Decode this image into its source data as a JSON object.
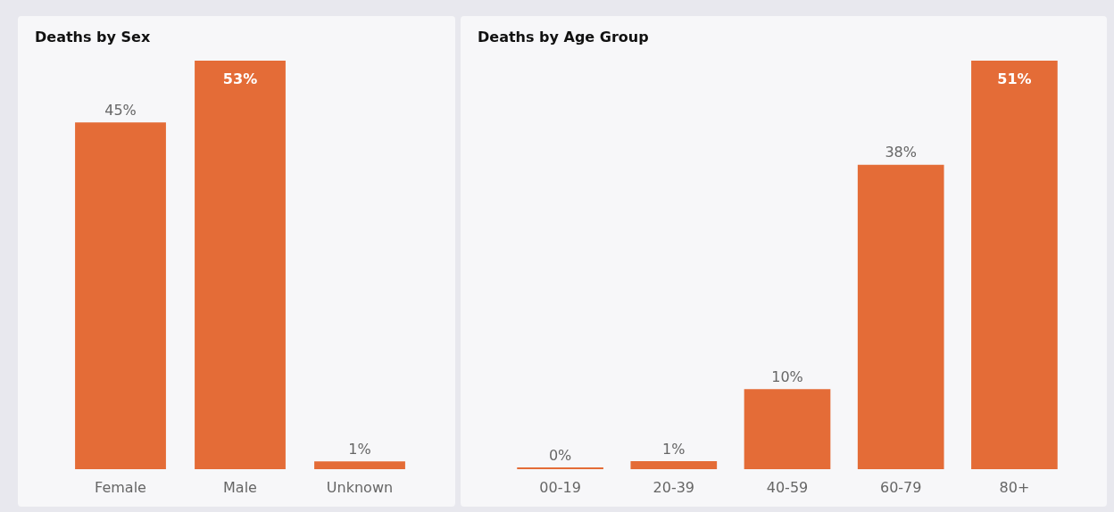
{
  "chart_data": [
    {
      "type": "bar",
      "title": "Deaths by Sex",
      "categories": [
        "Female",
        "Male",
        "Unknown"
      ],
      "values": [
        45,
        53,
        1
      ],
      "color": "#e46c37",
      "value_labels": [
        "45%",
        "53%",
        "1%"
      ]
    },
    {
      "type": "bar",
      "title": "Deaths by Age Group",
      "categories": [
        "00-19",
        "20-39",
        "40-59",
        "60-79",
        "80+"
      ],
      "values": [
        0,
        1,
        10,
        38,
        51
      ],
      "color": "#e46c37",
      "value_labels": [
        "0%",
        "1%",
        "10%",
        "38%",
        "51%"
      ]
    }
  ]
}
